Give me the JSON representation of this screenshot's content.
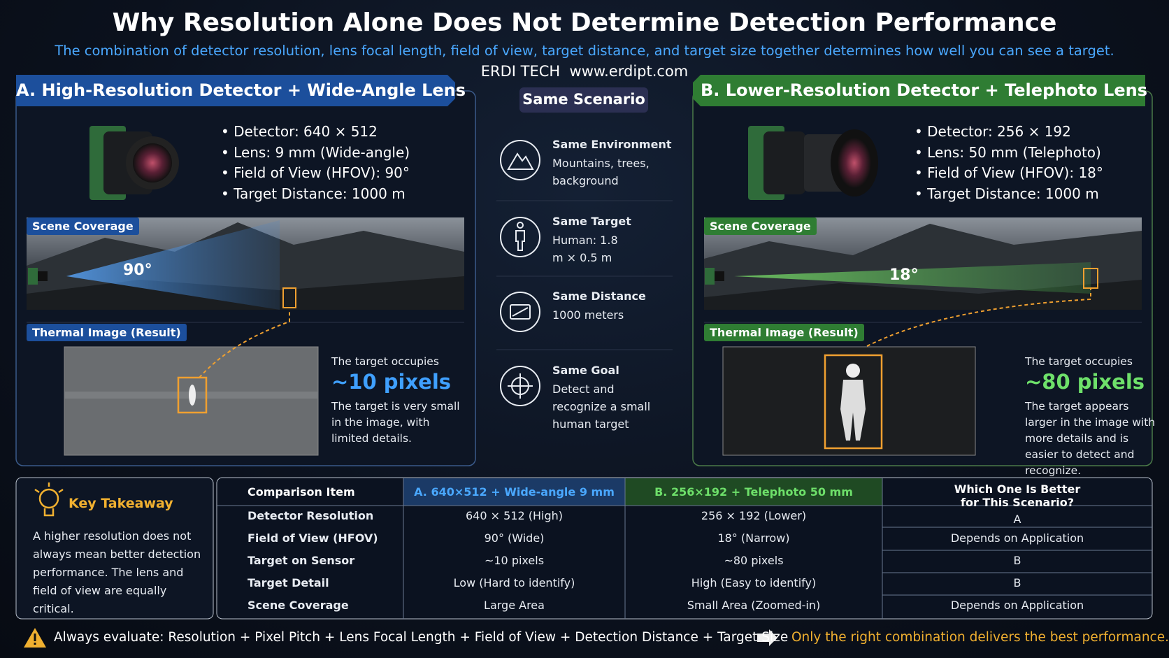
{
  "header": {
    "title": "Why Resolution Alone Does Not Determine Detection Performance",
    "subtitle": "The combination of detector resolution, lens focal length, field of view, target distance, and target size together determines how well you can see a target.",
    "brand": "ERDI TECH  www.erdipt.com"
  },
  "panel_a": {
    "heading": "A. High-Resolution Detector + Wide-Angle Lens",
    "specs": [
      "• Detector: 640 × 512",
      "• Lens: 9 mm (Wide-angle)",
      "• Field of View (HFOV): 90°",
      "• Target Distance: 1000 m"
    ],
    "scene_label": "Scene Coverage",
    "angle": "90°",
    "result_label": "Thermal Image (Result)",
    "note_intro": "The target occupies",
    "pixels": "~10 pixels",
    "note": "The target is very small in the image, with limited details."
  },
  "scenario": {
    "heading": "Same Scenario",
    "items": [
      {
        "title": "Same Environment",
        "text": "Mountains, trees, background"
      },
      {
        "title": "Same Target",
        "text": "Human: 1.8 m × 0.5 m"
      },
      {
        "title": "Same Distance",
        "text": "1000 meters"
      },
      {
        "title": "Same Goal",
        "text": "Detect and recognize a small human target"
      }
    ]
  },
  "panel_b": {
    "heading": "B. Lower-Resolution Detector + Telephoto Lens",
    "specs": [
      "• Detector: 256 × 192",
      "• Lens: 50 mm (Telephoto)",
      "• Field of View (HFOV): 18°",
      "• Target Distance: 1000 m"
    ],
    "scene_label": "Scene Coverage",
    "angle": "18°",
    "result_label": "Thermal Image (Result)",
    "note_intro": "The target occupies",
    "pixels": "~80 pixels",
    "note": "The target appears larger in the image with more details and is easier to detect and recognize."
  },
  "takeaway": {
    "title": "Key Takeaway",
    "text": "A higher resolution does not always mean better detection performance. The lens and field of view are equally critical."
  },
  "table": {
    "header": [
      "Comparison Item",
      "A. 640×512 + Wide-angle 9 mm",
      "B. 256×192 + Telephoto 50 mm",
      "Which One Is Better for This Scenario?"
    ],
    "rows": [
      [
        "Detector Resolution",
        "640 × 512 (High)",
        "256 × 192 (Lower)",
        "A"
      ],
      [
        "Field of View (HFOV)",
        "90° (Wide)",
        "18° (Narrow)",
        "Depends on Application"
      ],
      [
        "Target on Sensor",
        "~10 pixels",
        "~80 pixels",
        "B"
      ],
      [
        "Target Detail",
        "Low (Hard to identify)",
        "High (Easy to identify)",
        "B"
      ],
      [
        "Scene Coverage",
        "Large Area",
        "Small Area (Zoomed-in)",
        "Depends on Application"
      ]
    ]
  },
  "footer": {
    "left": "Always evaluate: Resolution + Pixel Pitch + Lens Focal Length + Field of View + Detection Distance + Target Size",
    "right": "Only the right combination delivers the best performance."
  }
}
